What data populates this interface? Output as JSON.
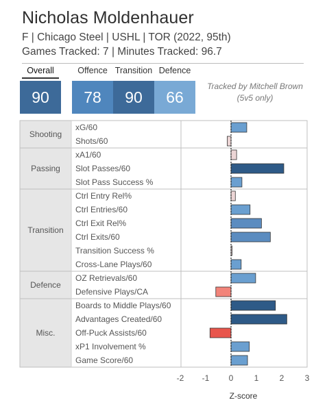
{
  "header": {
    "title": "Nicholas Moldenhauer",
    "subtitle": "F | Chicago Steel | USHL | TOR (2022, 95th)",
    "games_line": "Games Tracked: 7 | Minutes Tracked: 96.7"
  },
  "scores": {
    "overall_label": "Overall",
    "overall_value": "90",
    "offence_label": "Offence",
    "offence_value": "78",
    "transition_label": "Transition",
    "transition_value": "90",
    "defence_label": "Defence",
    "defence_value": "66"
  },
  "credit": {
    "line1": "Tracked by Mitchell Brown",
    "line2": "(5v5 only)"
  },
  "colors": {
    "dark_blue": "#2e5a87",
    "mid_blue": "#5b8cc0",
    "light_blue": "#6a9fd0",
    "pale_pink": "#ecd5d5",
    "salmon": "#f2847a",
    "red": "#e8554c",
    "score_overall": "#3d6a99",
    "score_offence": "#4f86bd",
    "score_transition": "#3d6a99",
    "score_defence": "#79a9d5"
  },
  "chart_data": {
    "type": "bar",
    "orientation": "horizontal",
    "xlabel": "Z-score",
    "xlim": [
      -2.2,
      3
    ],
    "xticks": [
      -2,
      -1,
      0,
      1,
      2,
      3
    ],
    "groups": [
      {
        "name": "Shooting",
        "metrics": [
          {
            "label": "xG/60",
            "value": 0.62,
            "color": "light_blue"
          },
          {
            "label": "Shots/60",
            "value": -0.15,
            "color": "pale_pink"
          }
        ]
      },
      {
        "name": "Passing",
        "metrics": [
          {
            "label": "xA1/60",
            "value": 0.22,
            "color": "pale_pink"
          },
          {
            "label": "Slot Passes/60",
            "value": 2.08,
            "color": "dark_blue"
          },
          {
            "label": "Slot Pass Success %",
            "value": 0.43,
            "color": "light_blue"
          }
        ]
      },
      {
        "name": "Transition",
        "metrics": [
          {
            "label": "Ctrl Entry Rel%",
            "value": 0.17,
            "color": "pale_pink"
          },
          {
            "label": "Ctrl Entries/60",
            "value": 0.75,
            "color": "light_blue"
          },
          {
            "label": "Ctrl Exit Rel%",
            "value": 1.2,
            "color": "mid_blue"
          },
          {
            "label": "Ctrl Exits/60",
            "value": 1.55,
            "color": "mid_blue"
          },
          {
            "label": "Transition Success %",
            "value": 0.04,
            "color": "pale_pink"
          },
          {
            "label": "Cross-Lane Plays/60",
            "value": 0.4,
            "color": "light_blue"
          }
        ]
      },
      {
        "name": "Defence",
        "metrics": [
          {
            "label": "OZ Retrievals/60",
            "value": 0.97,
            "color": "light_blue"
          },
          {
            "label": "Defensive Plays/CA",
            "value": -0.6,
            "color": "salmon"
          }
        ]
      },
      {
        "name": "Misc.",
        "metrics": [
          {
            "label": "Boards to Middle Plays/60",
            "value": 1.75,
            "color": "dark_blue"
          },
          {
            "label": "Advantages Created/60",
            "value": 2.2,
            "color": "dark_blue"
          },
          {
            "label": "Off-Puck Assists/60",
            "value": -0.83,
            "color": "red"
          },
          {
            "label": "xP1 Involvement %",
            "value": 0.72,
            "color": "light_blue"
          },
          {
            "label": "Game Score/60",
            "value": 0.65,
            "color": "light_blue"
          }
        ]
      }
    ]
  }
}
